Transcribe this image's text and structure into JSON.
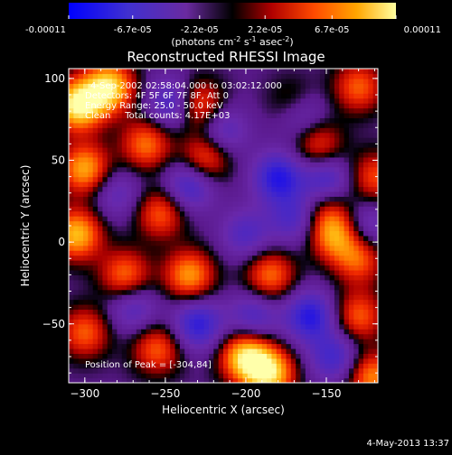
{
  "colorbar": {
    "tick_labels": [
      "-0.00011",
      "-6.7e-05",
      "-2.2e-05",
      "2.2e-05",
      "6.7e-05",
      "0.00011"
    ],
    "tick_values": [
      -0.00011,
      -6.7e-05,
      -2.2e-05,
      2.2e-05,
      6.7e-05,
      0.00011
    ],
    "range": [
      -0.00011,
      0.00011
    ],
    "unit_base": "(photons cm",
    "unit_exp1": "-2",
    "unit_mid": " s",
    "unit_exp2": "-1",
    "unit_mid2": " asec",
    "unit_exp3": "-2",
    "unit_end": ")",
    "colors": [
      "#0000ff",
      "#5a2ab8",
      "#7a2a90",
      "#000000",
      "#b40000",
      "#ff4500",
      "#ffa000",
      "#ffff90"
    ]
  },
  "chart_data": {
    "type": "heatmap",
    "title": "Reconstructed RHESSI Image",
    "xlabel": "Heliocentric X (arcsec)",
    "ylabel": "Heliocentric Y (arcsec)",
    "xlim": [
      -310,
      -118
    ],
    "ylim": [
      -86,
      106
    ],
    "x_ticks": [
      -300,
      -250,
      -200,
      -150
    ],
    "y_ticks": [
      -50,
      0,
      50,
      100
    ],
    "annotations": {
      "time": "4-Sep-2002 02:58:04.000 to 03:02:12.000",
      "detectors": "Detectors: 4F 5F 6F 7F 8F, Att 0",
      "energy": "Energy Range: 25.0 - 50.0 keV",
      "clean": "Clean     Total counts: 4.17E+03",
      "peak": "Position of Peak = [-304,84]"
    },
    "hot_sources": [
      {
        "x": -304,
        "y": 84,
        "intensity": 1.0
      },
      {
        "x": -285,
        "y": 95,
        "intensity": 0.9
      },
      {
        "x": -300,
        "y": 45,
        "intensity": 0.75
      },
      {
        "x": -305,
        "y": 5,
        "intensity": 0.8
      },
      {
        "x": -300,
        "y": -55,
        "intensity": 0.55
      },
      {
        "x": -275,
        "y": -20,
        "intensity": 0.6
      },
      {
        "x": -255,
        "y": -65,
        "intensity": 0.55
      },
      {
        "x": -262,
        "y": 60,
        "intensity": 0.6
      },
      {
        "x": -230,
        "y": 84,
        "intensity": 0.65
      },
      {
        "x": -225,
        "y": 52,
        "intensity": 0.6
      },
      {
        "x": -253,
        "y": 18,
        "intensity": 0.55
      },
      {
        "x": -235,
        "y": -20,
        "intensity": 0.7
      },
      {
        "x": -185,
        "y": -20,
        "intensity": 0.6
      },
      {
        "x": -200,
        "y": -70,
        "intensity": 0.9
      },
      {
        "x": -185,
        "y": -80,
        "intensity": 0.85
      },
      {
        "x": -145,
        "y": 5,
        "intensity": 0.7
      },
      {
        "x": -155,
        "y": 60,
        "intensity": 0.5
      },
      {
        "x": -130,
        "y": 95,
        "intensity": 0.55
      },
      {
        "x": -120,
        "y": 40,
        "intensity": 0.5
      },
      {
        "x": -130,
        "y": -10,
        "intensity": 0.55
      },
      {
        "x": -130,
        "y": -45,
        "intensity": 0.55
      },
      {
        "x": -122,
        "y": -82,
        "intensity": 0.65
      },
      {
        "x": -170,
        "y": 85,
        "intensity": 0.35
      },
      {
        "x": -150,
        "y": 22,
        "intensity": 0.35
      }
    ],
    "cold_sources": [
      {
        "x": -245,
        "y": 85,
        "intensity": 0.8
      },
      {
        "x": -215,
        "y": 68,
        "intensity": 0.6
      },
      {
        "x": -235,
        "y": 35,
        "intensity": 0.75
      },
      {
        "x": -165,
        "y": 78,
        "intensity": 0.6
      },
      {
        "x": -180,
        "y": 40,
        "intensity": 0.9
      },
      {
        "x": -150,
        "y": 38,
        "intensity": 0.75
      },
      {
        "x": -170,
        "y": 15,
        "intensity": 0.6
      },
      {
        "x": -200,
        "y": 5,
        "intensity": 0.55
      },
      {
        "x": -230,
        "y": -50,
        "intensity": 0.85
      },
      {
        "x": -270,
        "y": -40,
        "intensity": 0.55
      },
      {
        "x": -160,
        "y": -45,
        "intensity": 0.9
      },
      {
        "x": -145,
        "y": -70,
        "intensity": 0.7
      },
      {
        "x": -125,
        "y": 10,
        "intensity": 0.5
      },
      {
        "x": -280,
        "y": 30,
        "intensity": 0.45
      },
      {
        "x": -195,
        "y": -45,
        "intensity": 0.6
      }
    ]
  },
  "footer": {
    "date": "4-May-2013 13:37"
  }
}
